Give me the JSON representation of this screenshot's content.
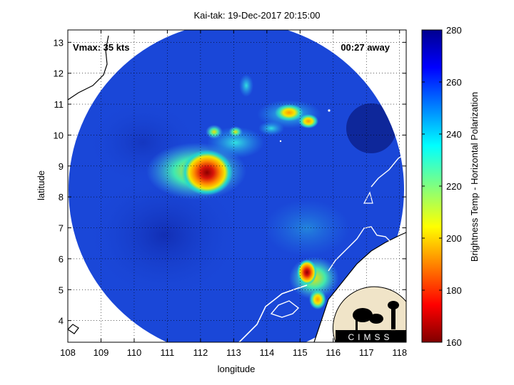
{
  "title": "Kai-tak: 19-Dec-2017 20:15:00",
  "annotations": {
    "vmax": "Vmax: 35 kts",
    "time_away": "00:27 away"
  },
  "axes": {
    "xlabel": "longitude",
    "ylabel": "latitude",
    "x_ticks": [
      "108",
      "109",
      "110",
      "111",
      "112",
      "113",
      "114",
      "115",
      "116",
      "117",
      "118"
    ],
    "y_ticks": [
      "13",
      "12",
      "11",
      "10",
      "9",
      "8",
      "7",
      "6",
      "5",
      "4"
    ],
    "xlim": [
      108,
      118.2
    ],
    "ylim": [
      3.3,
      13.4
    ],
    "grid": "dotted"
  },
  "colorbar": {
    "label": "Brightness Temp - Horizontal Polarization",
    "ticks": [
      "280",
      "260",
      "240",
      "220",
      "200",
      "180",
      "160"
    ],
    "range": [
      160,
      280
    ],
    "colormap": "jet"
  },
  "logo": {
    "text": "CIMSS"
  },
  "colors": {
    "background_field": "#1a47d8",
    "coast": "#ffffff"
  }
}
